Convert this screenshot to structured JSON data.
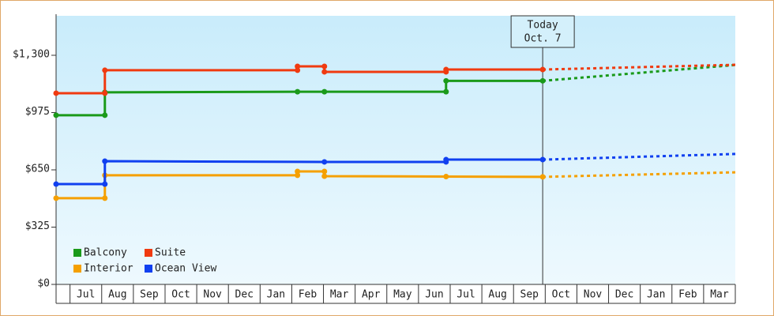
{
  "chart_data": {
    "type": "line",
    "step_markers": true,
    "categories": [
      "Jul",
      "Aug",
      "Sep",
      "Oct",
      "Nov",
      "Dec",
      "Jan",
      "Feb",
      "Mar",
      "Apr",
      "May",
      "Jun",
      "Jul",
      "Aug",
      "Sep",
      "Oct",
      "Nov",
      "Dec",
      "Jan",
      "Feb",
      "Mar"
    ],
    "xlim": [
      -0.44,
      21
    ],
    "ylim": [
      0,
      1524
    ],
    "yticks": [
      {
        "value": 0,
        "label": "$0"
      },
      {
        "value": 325,
        "label": "$325"
      },
      {
        "value": 650,
        "label": "$650"
      },
      {
        "value": 975,
        "label": "$975"
      },
      {
        "value": 1300,
        "label": "$1,300"
      }
    ],
    "annotation": {
      "lines": [
        "Today",
        "Oct. 7"
      ],
      "x": 14.92
    },
    "series": [
      {
        "name": "Balcony",
        "color": "#1a9a1a",
        "x": [
          -0.44,
          1.1,
          1.1,
          7.18,
          8.03,
          11.87,
          11.87,
          14.92,
          21.0
        ],
        "values": [
          960,
          960,
          1090,
          1093,
          1093,
          1093,
          1155,
          1155,
          1245
        ]
      },
      {
        "name": "Suite",
        "color": "#f03a10",
        "x": [
          -0.44,
          1.1,
          1.1,
          7.18,
          7.18,
          8.03,
          8.03,
          11.87,
          11.87,
          14.92,
          21.0
        ],
        "values": [
          1085,
          1085,
          1215,
          1215,
          1237,
          1237,
          1206,
          1206,
          1219,
          1219,
          1246
        ]
      },
      {
        "name": "Interior",
        "color": "#f5a000",
        "x": [
          -0.44,
          1.1,
          1.1,
          7.18,
          7.18,
          8.03,
          8.03,
          11.87,
          14.92,
          21.0
        ],
        "values": [
          489,
          489,
          619,
          619,
          641,
          641,
          614,
          612,
          610,
          636
        ]
      },
      {
        "name": "Ocean View",
        "color": "#1040f0",
        "x": [
          -0.44,
          1.1,
          1.1,
          8.03,
          11.87,
          11.87,
          14.92,
          21.0
        ],
        "values": [
          569,
          569,
          699,
          695,
          695,
          708,
          708,
          740
        ]
      }
    ]
  }
}
